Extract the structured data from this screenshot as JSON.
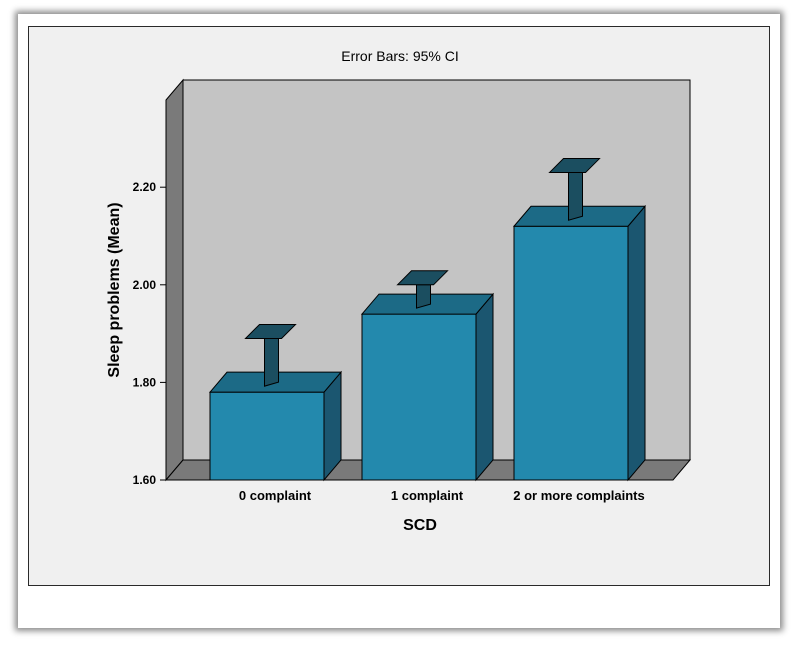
{
  "chart_data": {
    "type": "bar",
    "title": "",
    "subtitle": "Error Bars: 95% CI",
    "xlabel": "SCD",
    "ylabel": "Sleep problems (Mean)",
    "categories": [
      "0 complaint",
      "1 complaint",
      "2 or more complaints"
    ],
    "values": [
      1.78,
      1.94,
      2.12
    ],
    "ci_upper": [
      1.89,
      2.0,
      2.23
    ],
    "ylim": [
      1.6,
      2.4
    ],
    "yticks": [
      "1.60",
      "1.80",
      "2.00",
      "2.20"
    ],
    "grid": false,
    "three_d": true,
    "colors": {
      "bar_front": "#2389ad",
      "bar_top": "#1c6a86",
      "bar_side": "#1b5670",
      "error_bar": "#1b4e60",
      "wall": "#c4c4c4",
      "wall_side": "#7a7a7a",
      "floor": "#7a7a7a",
      "panel": "#f0f0f0"
    }
  }
}
